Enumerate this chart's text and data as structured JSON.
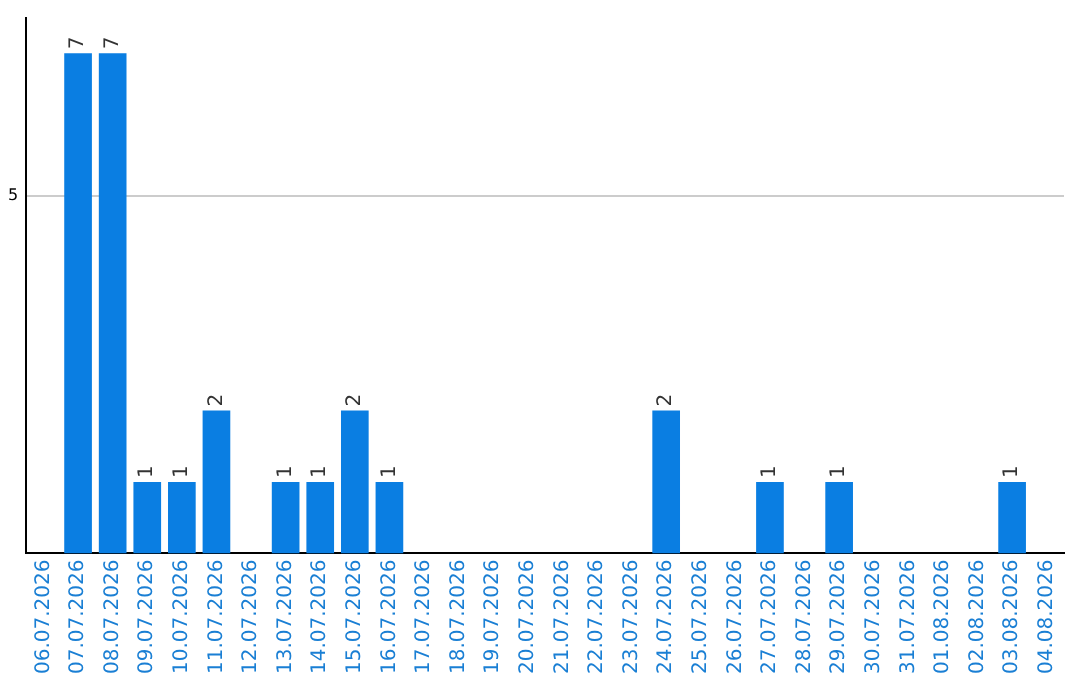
{
  "chart_data": {
    "type": "bar",
    "categories": [
      "06.07.2026",
      "07.07.2026",
      "08.07.2026",
      "09.07.2026",
      "10.07.2026",
      "11.07.2026",
      "12.07.2026",
      "13.07.2026",
      "14.07.2026",
      "15.07.2026",
      "16.07.2026",
      "17.07.2026",
      "18.07.2026",
      "19.07.2026",
      "20.07.2026",
      "21.07.2026",
      "22.07.2026",
      "23.07.2026",
      "24.07.2026",
      "25.07.2026",
      "26.07.2026",
      "27.07.2026",
      "28.07.2026",
      "29.07.2026",
      "30.07.2026",
      "31.07.2026",
      "01.08.2026",
      "02.08.2026",
      "03.08.2026",
      "04.08.2026"
    ],
    "values": [
      0,
      7,
      7,
      1,
      1,
      2,
      0,
      1,
      1,
      2,
      1,
      0,
      0,
      0,
      0,
      0,
      0,
      0,
      2,
      0,
      0,
      1,
      0,
      1,
      0,
      0,
      0,
      0,
      1,
      0
    ],
    "value_labels": [
      null,
      "7",
      "7",
      "1",
      "1",
      "2",
      null,
      "1",
      "1",
      "2",
      "1",
      null,
      null,
      null,
      null,
      null,
      null,
      null,
      "2",
      null,
      null,
      "1",
      null,
      "1",
      null,
      null,
      null,
      null,
      "1",
      null
    ],
    "color": "#0a7ee2",
    "ylim": [
      0,
      7.5
    ],
    "yticks": [
      5
    ],
    "grid": "y",
    "legend": false
  }
}
